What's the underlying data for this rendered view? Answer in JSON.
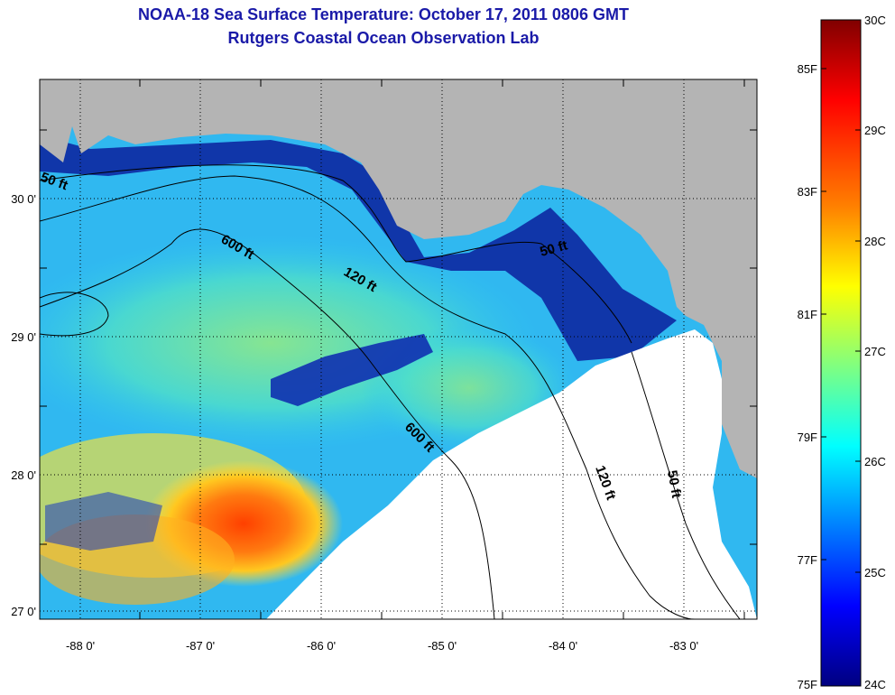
{
  "title": "NOAA-18 Sea Surface Temperature:  October 17, 2011 0806 GMT",
  "subtitle": "Rutgers Coastal Ocean Observation Lab",
  "map": {
    "lon_ticks": [
      "-88 0'",
      "-87 0'",
      "-86 0'",
      "-85 0'",
      "-84 0'",
      "-83 0'"
    ],
    "lat_ticks": [
      "30 0'",
      "29 0'",
      "28 0'",
      "27 0'"
    ],
    "contour_labels": [
      "50 ft",
      "600 ft",
      "120 ft",
      "50 ft",
      "600 ft",
      "120 ft",
      "50 ft"
    ],
    "colors": {
      "land": "#b4b4b4",
      "no_data": "#ffffff",
      "coastal_cold": "#0a1e9c",
      "gridline": "#000000"
    }
  },
  "colorbar": {
    "celsius": [
      "30C",
      "29C",
      "28C",
      "27C",
      "26C",
      "25C",
      "24C"
    ],
    "fahrenheit": [
      "85F",
      "83F",
      "81F",
      "79F",
      "77F",
      "75F"
    ],
    "colors": [
      "#800000",
      "#ff0000",
      "#ff8000",
      "#ffff00",
      "#80ff80",
      "#00ffff",
      "#0080ff",
      "#0000ff",
      "#000080"
    ]
  }
}
